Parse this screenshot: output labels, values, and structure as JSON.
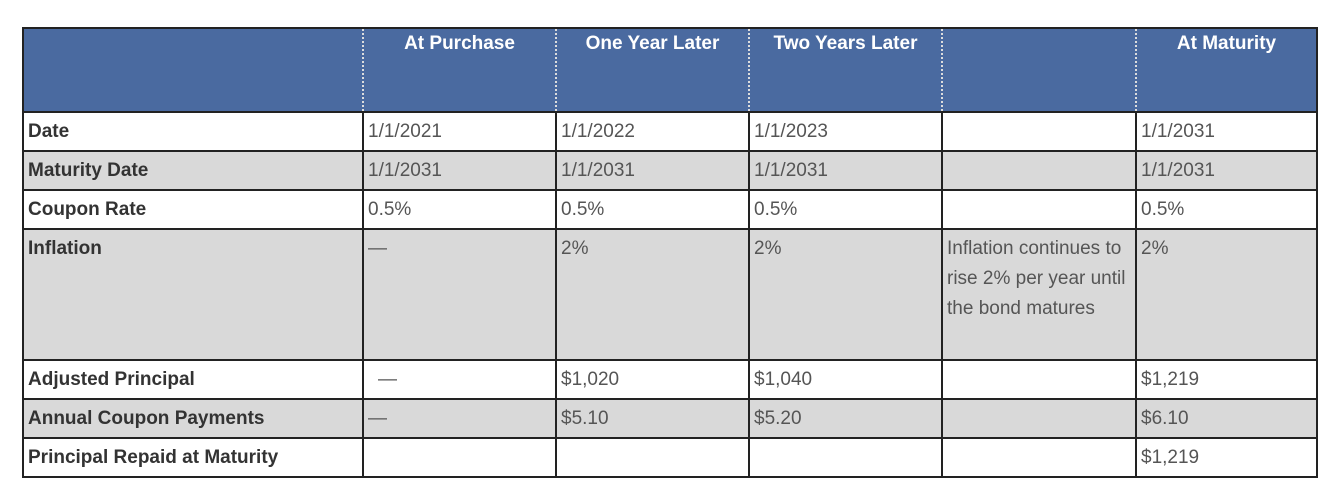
{
  "header": [
    "",
    "At Purchase",
    "One Year Later",
    "Two Years Later",
    "",
    "At Maturity"
  ],
  "rows": [
    {
      "label": "Date",
      "cells": [
        "1/1/2021",
        "1/1/2022",
        "1/1/2023",
        "",
        "1/1/2031"
      ]
    },
    {
      "label": "Maturity Date",
      "cells": [
        "1/1/2031",
        "1/1/2031",
        "1/1/2031",
        "",
        "1/1/2031"
      ]
    },
    {
      "label": "Coupon Rate",
      "cells": [
        "0.5%",
        "0.5%",
        "0.5%",
        "",
        "0.5%"
      ]
    },
    {
      "label": "Inflation",
      "cells": [
        "—",
        "2%",
        "2%",
        "Inflation continues to rise 2% per year until the bond matures",
        "2%"
      ]
    },
    {
      "label": "Adjusted Principal",
      "cells": [
        "—",
        "$1,020",
        "$1,040",
        "",
        "$1,219"
      ]
    },
    {
      "label": "Annual Coupon Payments",
      "cells": [
        "—",
        "$5.10",
        "$5.20",
        "",
        "$6.10"
      ]
    },
    {
      "label": "Principal Repaid at Maturity",
      "cells": [
        "",
        "",
        "",
        "",
        "$1,219"
      ]
    }
  ],
  "colors": {
    "header_bg": "#4a6aa0",
    "shaded_row": "#d9d9d9"
  }
}
